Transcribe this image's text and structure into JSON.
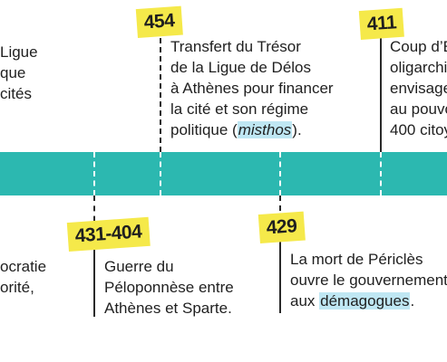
{
  "events_top": [
    {
      "date": "454",
      "lines": [
        "Transfert du Trésor",
        "de la Ligue de Délos",
        "à Athènes pour financer",
        "la cité et son régime"
      ],
      "last_line_prefix": "politique (",
      "last_line_em": "misthos",
      "last_line_suffix": ")."
    },
    {
      "date": "411",
      "lines": [
        "Coup d’É",
        "oligarchie",
        "envisage",
        "au pouvo",
        "400 citoy"
      ]
    }
  ],
  "events_bottom": [
    {
      "date": "431-404",
      "lines": [
        "Guerre du",
        "Péloponnèse entre",
        "Athènes et Sparte."
      ]
    },
    {
      "date": "429",
      "lines": [
        "La mort de Périclès",
        "ouvre le gouvernement"
      ],
      "last_line_prefix": "aux ",
      "last_line_hl": "démagogues",
      "last_line_suffix": "."
    }
  ],
  "left_fragments_top": [
    "Ligue",
    "que",
    "cités"
  ],
  "left_fragments_bottom": [
    "ocratie",
    "orité,"
  ],
  "colors": {
    "band": "#2cb8b0",
    "tag": "#f5e94a",
    "highlight": "#bfe7f3"
  }
}
